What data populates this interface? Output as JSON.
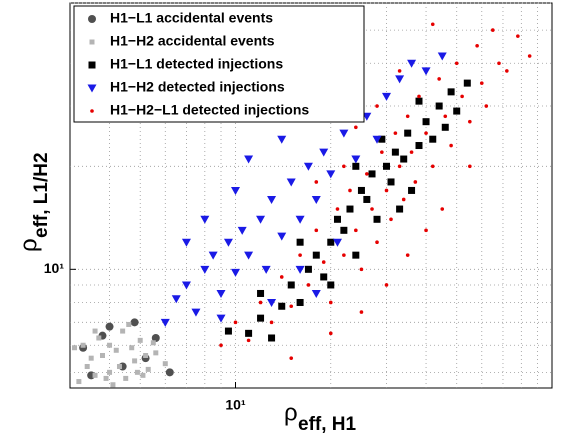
{
  "chart_data": {
    "type": "scatter",
    "log_x": true,
    "log_y": true,
    "grid": true,
    "legend": "upper left",
    "xlabel": "ρ",
    "xlabel_sub": "eff, H1",
    "ylabel": "ρ",
    "ylabel_sub": "eff, L1/H2",
    "xlim": [
      3,
      100
    ],
    "ylim": [
      4.5,
      60
    ],
    "xticks": [
      {
        "value": 10,
        "label": "10¹"
      }
    ],
    "yticks": [
      {
        "value": 10,
        "label": "10¹"
      }
    ],
    "xminor": [
      4,
      5,
      6,
      7,
      8,
      9,
      20,
      30,
      40,
      50,
      60,
      70,
      80,
      90
    ],
    "yminor": [
      5,
      6,
      7,
      8,
      9,
      20,
      30,
      40,
      50,
      60
    ],
    "series": [
      {
        "name": "H1−L1 accidental events",
        "color": "#505050",
        "marker": "circle",
        "x": [
          3.3,
          3.8,
          4.4,
          5.2,
          4.0,
          3.5,
          5.6,
          6.2,
          4.8
        ],
        "y": [
          5.9,
          6.4,
          5.2,
          5.5,
          6.8,
          4.9,
          6.3,
          5.0,
          7.0
        ]
      },
      {
        "name": "H1−H2 accidental events",
        "color": "#b4b4b4",
        "marker": "small-square",
        "x": [
          3.2,
          3.4,
          3.6,
          3.8,
          4.0,
          4.2,
          4.5,
          4.8,
          5.0,
          5.3,
          5.6,
          6.0,
          3.3,
          3.7,
          4.1,
          4.4,
          4.7,
          5.1,
          5.5,
          3.5,
          3.9,
          4.3,
          4.6,
          5.2,
          3.1,
          3.6,
          4.0,
          4.9
        ],
        "y": [
          4.7,
          5.2,
          4.9,
          5.6,
          5.0,
          5.8,
          4.8,
          5.4,
          6.2,
          5.1,
          5.7,
          5.3,
          6.0,
          6.3,
          4.6,
          6.6,
          5.9,
          4.9,
          6.1,
          5.5,
          4.8,
          5.2,
          6.9,
          5.6,
          5.9,
          6.6,
          6.0,
          5.0
        ]
      },
      {
        "name": "H1−L1 detected injections",
        "color": "#000000",
        "marker": "square",
        "x": [
          11,
          12,
          13,
          14,
          15,
          16,
          17,
          18,
          19,
          20,
          21,
          22,
          23,
          24,
          25,
          26,
          27,
          28,
          30,
          31,
          32,
          34,
          35,
          36,
          38,
          40,
          42,
          44,
          46,
          48,
          50,
          54,
          16,
          20,
          24,
          29,
          33,
          12,
          9.5,
          38
        ],
        "y": [
          6.5,
          7.2,
          6.3,
          7.8,
          9,
          8,
          10,
          11,
          9.5,
          12,
          14,
          13,
          15,
          11,
          17,
          16,
          19,
          14,
          20,
          18,
          22,
          21,
          25,
          17,
          23,
          27,
          24,
          30,
          26,
          33,
          29,
          35,
          12,
          9,
          20,
          24,
          15,
          8.5,
          6.6,
          31
        ]
      },
      {
        "name": "H1−H2 detected injections",
        "color": "#1a1ae6",
        "marker": "triangle",
        "x": [
          6,
          6.5,
          7,
          7.5,
          8,
          8.5,
          9,
          9.5,
          10,
          10.5,
          11,
          12,
          12.5,
          13,
          14,
          15,
          16,
          17,
          18,
          19,
          20,
          22,
          24,
          26,
          28,
          30,
          33,
          36,
          40,
          45,
          8,
          10,
          11,
          14,
          7,
          9,
          13,
          16,
          18,
          21
        ],
        "y": [
          7,
          8.2,
          9,
          7.5,
          10,
          11,
          8.5,
          12,
          9.8,
          13,
          11,
          14,
          10,
          16,
          12.5,
          18,
          14,
          20,
          16,
          22,
          19,
          25,
          21,
          28,
          24,
          32,
          36,
          40,
          38,
          42,
          14,
          17,
          21,
          24,
          12,
          7.2,
          8,
          10,
          8.5,
          12
        ]
      },
      {
        "name": "H1−H2−L1 detected injections",
        "color": "#e60000",
        "marker": "dot",
        "x": [
          9,
          10,
          11,
          12,
          13,
          14,
          15,
          16,
          17,
          18,
          19,
          20,
          21,
          22,
          23,
          24,
          25,
          26,
          27,
          28,
          29,
          30,
          31,
          32,
          33,
          34,
          35,
          36,
          37,
          38,
          40,
          42,
          44,
          46,
          48,
          50,
          52,
          55,
          58,
          60,
          62,
          65,
          68,
          72,
          78,
          85,
          15,
          20,
          25,
          30,
          35,
          40,
          45,
          22,
          28,
          33,
          18,
          24,
          42,
          55
        ],
        "y": [
          6,
          7,
          6.2,
          8,
          7,
          9.5,
          7.8,
          11,
          9,
          13,
          10.5,
          8,
          15,
          11,
          17,
          13,
          10,
          19,
          15,
          12,
          22,
          17,
          14,
          25,
          20,
          16,
          28,
          22,
          18,
          32,
          25,
          20,
          36,
          28,
          23,
          40,
          32,
          27,
          45,
          35,
          30,
          50,
          40,
          38,
          48,
          42,
          5.5,
          6.5,
          7.5,
          9,
          11,
          13,
          15,
          20,
          30,
          38,
          18,
          26,
          52,
          20
        ]
      }
    ]
  }
}
